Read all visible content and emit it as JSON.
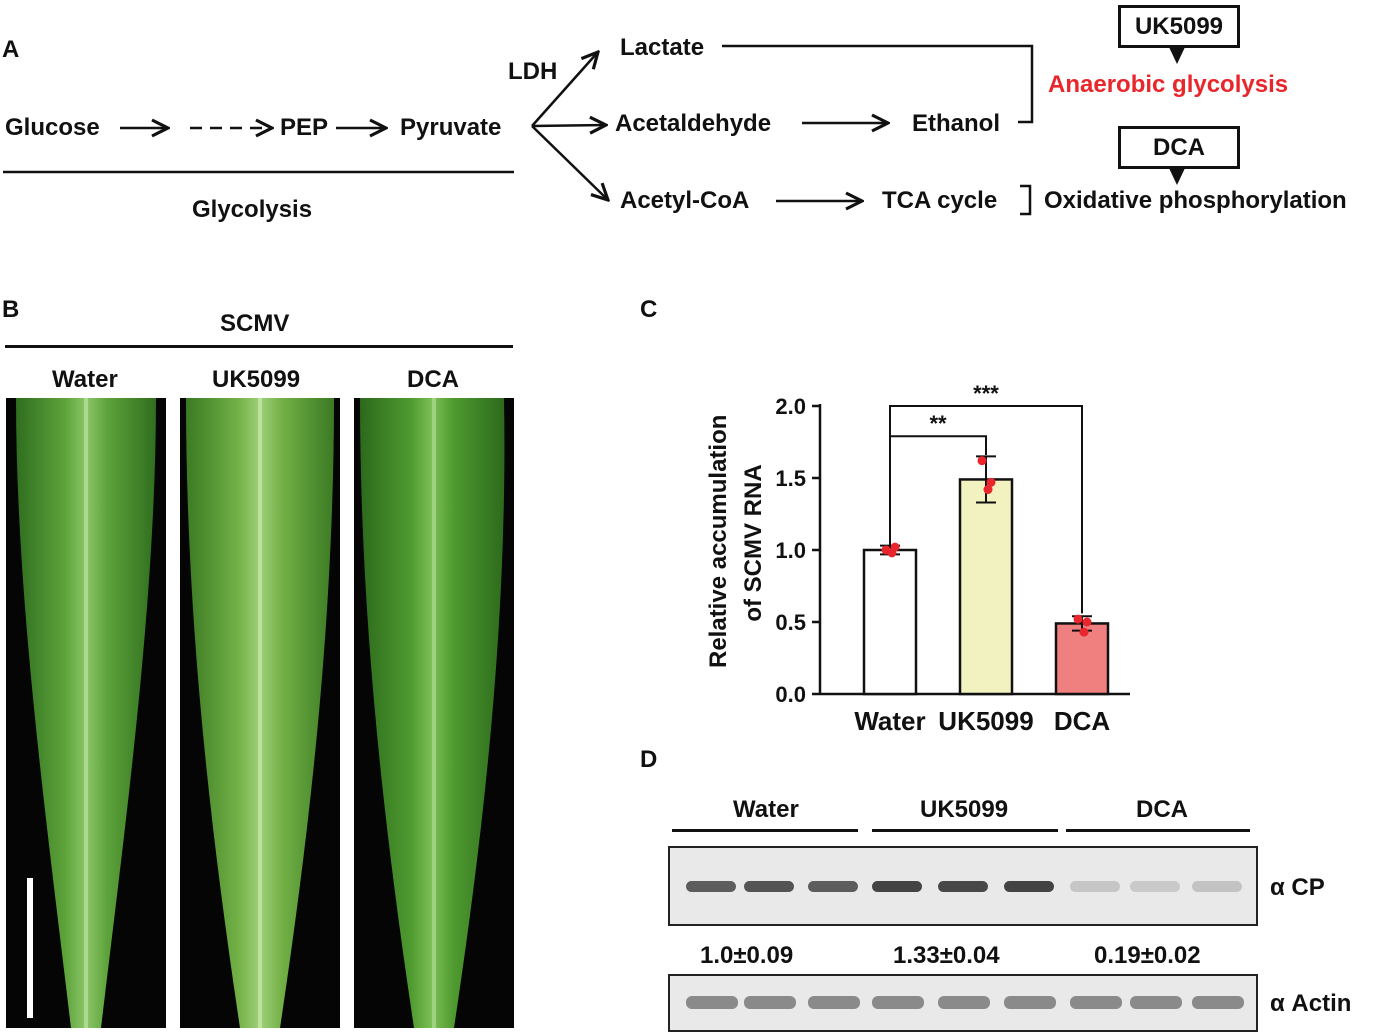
{
  "panels": {
    "a": "A",
    "b": "B",
    "c": "C",
    "d": "D"
  },
  "pathway": {
    "glucose": "Glucose",
    "pep": "PEP",
    "pyruvate": "Pyruvate",
    "glycolysis": "Glycolysis",
    "ldh": "LDH",
    "lactate": "Lactate",
    "acetaldehyde": "Acetaldehyde",
    "ethanol": "Ethanol",
    "acetyl_coa": "Acetyl-CoA",
    "tca": "TCA cycle",
    "anaerobic": "Anaerobic glycolysis",
    "oxphos": "Oxidative phosphorylation",
    "inhibitor1": "UK5099",
    "inhibitor2": "DCA",
    "anaerobic_color": "#e8262b"
  },
  "leaves": {
    "virus": "SCMV",
    "treatments": [
      "Water",
      "UK5099",
      "DCA"
    ]
  },
  "chart_data": {
    "type": "bar",
    "categories": [
      "Water",
      "UK5099",
      "DCA"
    ],
    "values": [
      1.0,
      1.49,
      0.49
    ],
    "errors": [
      0.03,
      0.16,
      0.05
    ],
    "points": [
      [
        1.0,
        0.98,
        1.02
      ],
      [
        1.62,
        1.42,
        1.47
      ],
      [
        0.52,
        0.43,
        0.5
      ]
    ],
    "ylabel_line1": "Relative accumulation",
    "ylabel_line2": "of SCMV RNA",
    "ylim": [
      0,
      2.0
    ],
    "yticks": [
      "0.0",
      "0.5",
      "1.0",
      "1.5",
      "2.0"
    ],
    "colors": [
      "#ffffff",
      "#f2f2c0",
      "#f08080"
    ],
    "point_color": "#e8262b",
    "significance": [
      {
        "from": "Water",
        "to": "UK5099",
        "label": "**"
      },
      {
        "from": "Water",
        "to": "DCA",
        "label": "***"
      }
    ]
  },
  "western": {
    "groups": [
      "Water",
      "UK5099",
      "DCA"
    ],
    "cp_label": "α CP",
    "actin_label": "α Actin",
    "quant": [
      "1.0±0.09",
      "1.33±0.04",
      "0.19±0.02"
    ],
    "cp_intensity": [
      0.8,
      0.85,
      0.8,
      0.95,
      0.92,
      0.95,
      0.2,
      0.18,
      0.22
    ]
  }
}
